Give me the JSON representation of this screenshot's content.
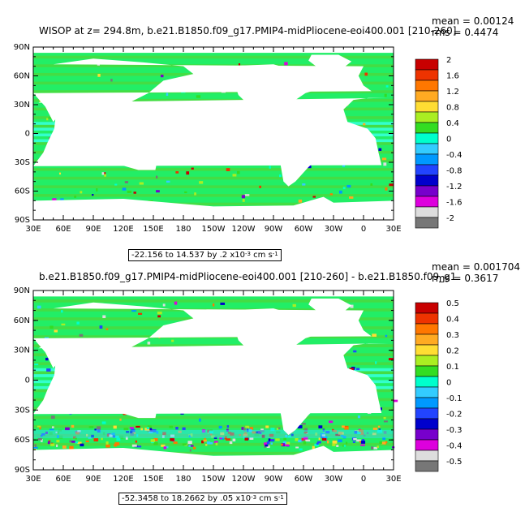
{
  "panels": [
    {
      "title": "WISOP at z= 294.8m, b.e21.B1850.f09_g17.PMIP4-midPliocene-eoi400.001 [210-260]",
      "stat_mean": "mean = 0.00124",
      "stat_rms": "rms = 0.4474",
      "range_text": "-22.156 to 14.537 by .2 x10",
      "range_exp": "-3",
      "range_units": " cm s",
      "range_units_exp": "-1",
      "legend_labels": [
        "2",
        "1.6",
        "1.2",
        "0.8",
        "0.4",
        "0",
        "-0.4",
        "-0.8",
        "-1.2",
        "-1.6",
        "-2"
      ]
    },
    {
      "title": "b.e21.B1850.f09_g17.PMIP4-midPliocene-eoi400.001 [210-260] - b.e21.B1850.f09_g1",
      "stat_mean": "mean = 0.001704",
      "stat_rms": "rms = 0.3617",
      "range_text": "-52.3458 to 18.2662 by .05 x10",
      "range_exp": "-3",
      "range_units": " cm s",
      "range_units_exp": "-1",
      "legend_labels": [
        "0.5",
        "0.4",
        "0.3",
        "0.2",
        "0.1",
        "0",
        "-0.1",
        "-0.2",
        "-0.3",
        "-0.4",
        "-0.5"
      ]
    }
  ],
  "axes": {
    "lat_labels": [
      "90N",
      "60N",
      "30N",
      "0",
      "30S",
      "60S",
      "90S"
    ],
    "lon_labels": [
      "30E",
      "60E",
      "90E",
      "120E",
      "150E",
      "180",
      "150W",
      "120W",
      "90W",
      "60W",
      "30W",
      "0",
      "30E"
    ]
  },
  "colors": {
    "scale": [
      "#c80000",
      "#ee3300",
      "#ff7700",
      "#ffaa22",
      "#ffdd33",
      "#aaee22",
      "#33dd22",
      "#00ffcc",
      "#33ccff",
      "#0099ff",
      "#2244ff",
      "#0000cc",
      "#7700cc",
      "#dd00dd",
      "#dddddd",
      "#777777"
    ],
    "ocean_main": "#22ee66",
    "ocean_alt": "#44dd44",
    "band_cyan": "#33ffcc"
  }
}
